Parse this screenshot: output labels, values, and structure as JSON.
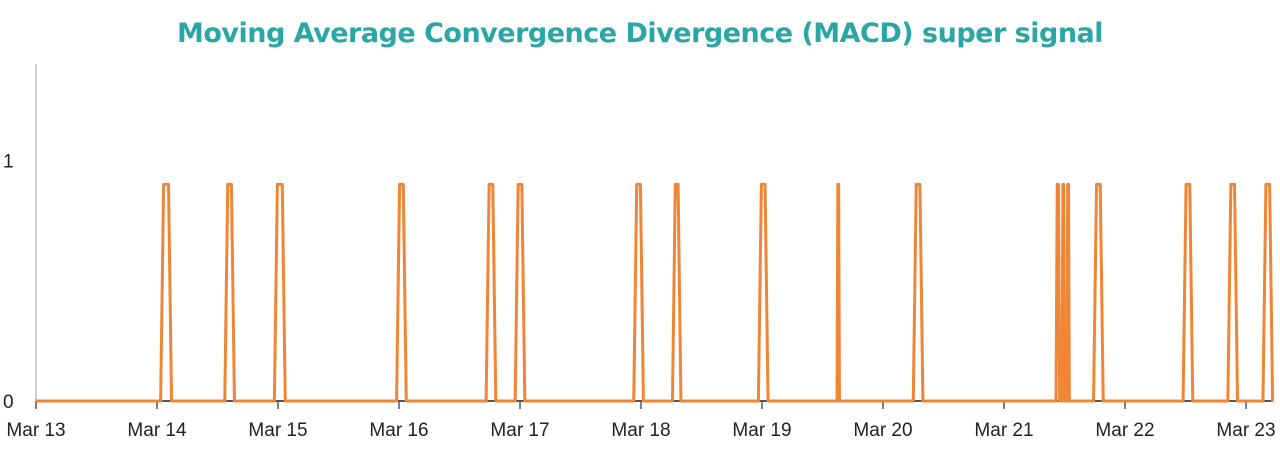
{
  "chart_data": {
    "type": "line",
    "title": "Moving Average Convergence Divergence (MACD) super signal",
    "xlabel": "",
    "ylabel": "",
    "x_start": "Mar 13",
    "x_end": "Mar 23",
    "x_ticks": [
      "Mar 13",
      "Mar 14",
      "Mar 15",
      "Mar 16",
      "Mar 17",
      "Mar 18",
      "Mar 19",
      "Mar 20",
      "Mar 21",
      "Mar 22",
      "Mar 23"
    ],
    "y_ticks": [
      "0",
      "1"
    ],
    "ylim": [
      0,
      1.4
    ],
    "grid": false,
    "legend": "none",
    "signal_high": 0.9,
    "series": [
      {
        "color": "#f08536",
        "pulses": [
          [
            1.03,
            1.12
          ],
          [
            1.56,
            1.64
          ],
          [
            1.97,
            2.06
          ],
          [
            2.98,
            3.06
          ],
          [
            3.72,
            3.8
          ],
          [
            3.96,
            4.04
          ],
          [
            4.94,
            5.02
          ],
          [
            5.26,
            5.33
          ],
          [
            5.97,
            6.05
          ],
          [
            6.62,
            6.64
          ],
          [
            7.25,
            7.33
          ],
          [
            8.43,
            8.46
          ],
          [
            8.48,
            8.5
          ],
          [
            8.52,
            8.54
          ],
          [
            8.74,
            8.82
          ],
          [
            9.48,
            9.56
          ],
          [
            9.85,
            9.93
          ],
          [
            10.14,
            10.22
          ]
        ]
      }
    ]
  }
}
